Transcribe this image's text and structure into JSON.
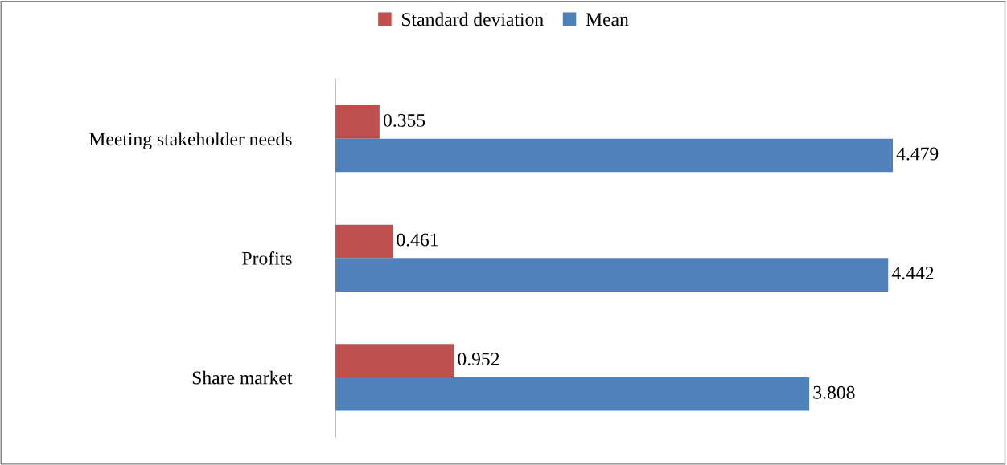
{
  "chart_data": {
    "type": "bar",
    "orientation": "horizontal",
    "categories": [
      "Meeting stakeholder needs",
      "Profits",
      "Share market"
    ],
    "series": [
      {
        "name": "Standard deviation",
        "color": "#c0504d",
        "values": [
          0.355,
          0.461,
          0.952
        ]
      },
      {
        "name": "Mean",
        "color": "#4f81bd",
        "values": [
          4.479,
          4.442,
          3.808
        ]
      }
    ],
    "data_labels": true,
    "legend": "top",
    "grid": false,
    "tick_labels": "y"
  }
}
